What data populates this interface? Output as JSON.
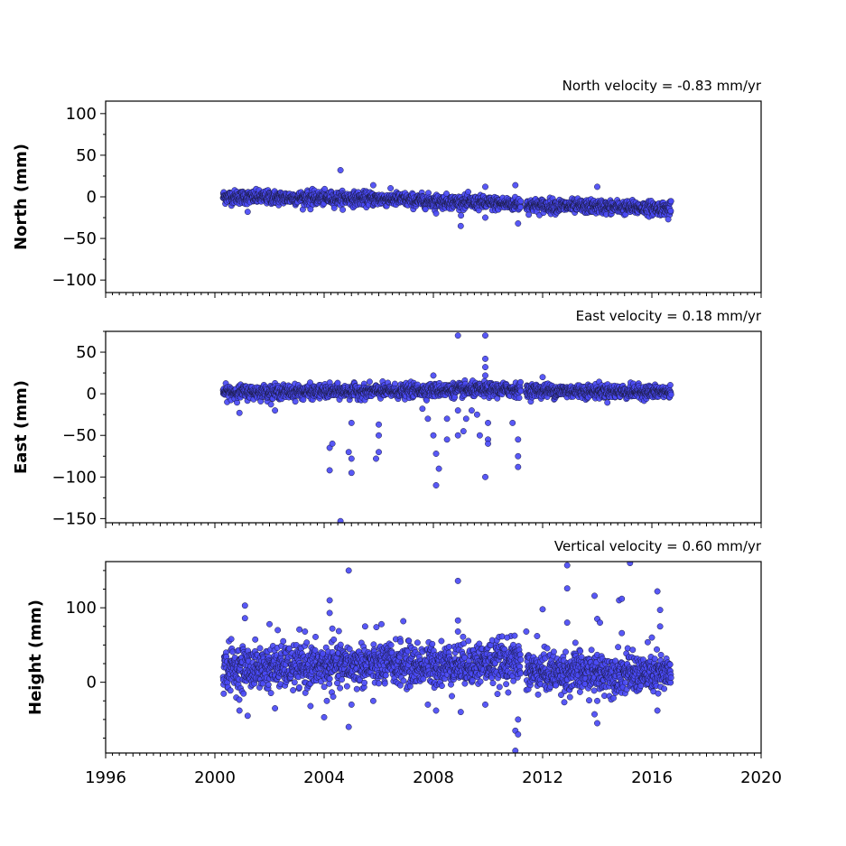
{
  "chart_data": [
    {
      "type": "scatter",
      "id": "north",
      "ylabel": "North (mm)",
      "annotation": "North velocity = -0.83 mm/yr",
      "xlim": [
        1996,
        2020
      ],
      "ylim": [
        -115,
        115
      ],
      "yticks": [
        -100,
        -50,
        0,
        50,
        100
      ],
      "yticklabels": [
        "−100",
        "−50",
        "0",
        "50",
        "100"
      ],
      "ryminor": 25,
      "color": "#4a4af5",
      "segments": [
        {
          "start": 2000.3,
          "end": 2007.0,
          "y0": 0.0,
          "y1": -3.0,
          "spread": 4
        },
        {
          "start": 2007.0,
          "end": 2011.2,
          "y0": -4.0,
          "y1": -9.0,
          "spread": 4
        },
        {
          "start": 2011.4,
          "end": 2016.7,
          "y0": -10.0,
          "y1": -14.0,
          "spread": 4
        }
      ],
      "outliers": [
        {
          "x": 2004.6,
          "y": 32
        },
        {
          "x": 2005.8,
          "y": 14
        },
        {
          "x": 2009.9,
          "y": 12
        },
        {
          "x": 2011.0,
          "y": 14
        },
        {
          "x": 2014.0,
          "y": 12
        },
        {
          "x": 2009.0,
          "y": -35
        },
        {
          "x": 2011.1,
          "y": -32
        },
        {
          "x": 2009.9,
          "y": -25
        },
        {
          "x": 2016.6,
          "y": -27
        },
        {
          "x": 2001.2,
          "y": -18
        },
        {
          "x": 2003.5,
          "y": -15
        },
        {
          "x": 2008.1,
          "y": -20
        }
      ]
    },
    {
      "type": "scatter",
      "id": "east",
      "ylabel": "East (mm)",
      "annotation": "East velocity = 0.18 mm/yr",
      "xlim": [
        1996,
        2020
      ],
      "ylim": [
        -155,
        75
      ],
      "yticks": [
        -150,
        -100,
        -50,
        0,
        50
      ],
      "yticklabels": [
        "−150",
        "−100",
        "−50",
        "0",
        "50"
      ],
      "ryminor": 25,
      "color": "#4a4af5",
      "segments": [
        {
          "start": 2000.3,
          "end": 2007.0,
          "y0": 2.0,
          "y1": 3.0,
          "spread": 4
        },
        {
          "start": 2007.0,
          "end": 2011.2,
          "y0": 4.0,
          "y1": 5.0,
          "spread": 4
        },
        {
          "start": 2011.4,
          "end": 2016.7,
          "y0": 4.0,
          "y1": 2.0,
          "spread": 4
        }
      ],
      "outliers": [
        {
          "x": 2000.9,
          "y": -23
        },
        {
          "x": 2002.2,
          "y": -20
        },
        {
          "x": 2004.2,
          "y": -65
        },
        {
          "x": 2004.3,
          "y": -60
        },
        {
          "x": 2004.2,
          "y": -92
        },
        {
          "x": 2004.6,
          "y": -153
        },
        {
          "x": 2005.0,
          "y": -35
        },
        {
          "x": 2005.0,
          "y": -78
        },
        {
          "x": 2005.0,
          "y": -95
        },
        {
          "x": 2004.9,
          "y": -70
        },
        {
          "x": 2006.0,
          "y": -37
        },
        {
          "x": 2006.0,
          "y": -50
        },
        {
          "x": 2006.0,
          "y": -70
        },
        {
          "x": 2005.9,
          "y": -78
        },
        {
          "x": 2007.6,
          "y": -18
        },
        {
          "x": 2007.8,
          "y": -30
        },
        {
          "x": 2008.0,
          "y": -50
        },
        {
          "x": 2008.1,
          "y": -72
        },
        {
          "x": 2008.2,
          "y": -90
        },
        {
          "x": 2008.1,
          "y": -110
        },
        {
          "x": 2008.5,
          "y": -30
        },
        {
          "x": 2008.5,
          "y": -55
        },
        {
          "x": 2008.9,
          "y": -20
        },
        {
          "x": 2008.9,
          "y": -50
        },
        {
          "x": 2009.1,
          "y": -45
        },
        {
          "x": 2009.2,
          "y": -30
        },
        {
          "x": 2009.4,
          "y": -20
        },
        {
          "x": 2009.6,
          "y": -25
        },
        {
          "x": 2009.7,
          "y": -50
        },
        {
          "x": 2010.0,
          "y": -35
        },
        {
          "x": 2010.0,
          "y": -55
        },
        {
          "x": 2010.0,
          "y": -60
        },
        {
          "x": 2009.9,
          "y": -100
        },
        {
          "x": 2010.9,
          "y": -35
        },
        {
          "x": 2011.1,
          "y": -55
        },
        {
          "x": 2011.1,
          "y": -75
        },
        {
          "x": 2011.1,
          "y": -88
        },
        {
          "x": 2008.9,
          "y": 70
        },
        {
          "x": 2009.9,
          "y": 70
        },
        {
          "x": 2009.9,
          "y": 42
        },
        {
          "x": 2009.9,
          "y": 32
        },
        {
          "x": 2009.9,
          "y": 22
        },
        {
          "x": 2008.0,
          "y": 22
        },
        {
          "x": 2012.0,
          "y": 20
        }
      ]
    },
    {
      "type": "scatter",
      "id": "height",
      "ylabel": "Height (mm)",
      "annotation": "Vertical velocity = 0.60 mm/yr",
      "xlim": [
        1996,
        2020
      ],
      "ylim": [
        -95,
        162
      ],
      "yticks": [
        0,
        100
      ],
      "yticklabels": [
        "0",
        "100"
      ],
      "ryminor": 25,
      "color": "#4a4af5",
      "segments": [
        {
          "start": 2000.3,
          "end": 2007.0,
          "y0": 18.0,
          "y1": 25.0,
          "spread": 14
        },
        {
          "start": 2007.0,
          "end": 2011.2,
          "y0": 22.0,
          "y1": 28.0,
          "spread": 14
        },
        {
          "start": 2011.4,
          "end": 2016.7,
          "y0": 15.0,
          "y1": 10.0,
          "spread": 13
        }
      ],
      "outliers": [
        {
          "x": 2001.1,
          "y": 103
        },
        {
          "x": 2001.1,
          "y": 86
        },
        {
          "x": 2001.2,
          "y": -45
        },
        {
          "x": 2000.9,
          "y": -38
        },
        {
          "x": 2002.0,
          "y": 78
        },
        {
          "x": 2002.3,
          "y": 70
        },
        {
          "x": 2002.2,
          "y": -35
        },
        {
          "x": 2003.3,
          "y": 68
        },
        {
          "x": 2003.5,
          "y": -32
        },
        {
          "x": 2004.0,
          "y": -47
        },
        {
          "x": 2004.2,
          "y": 110
        },
        {
          "x": 2004.2,
          "y": 93
        },
        {
          "x": 2004.3,
          "y": 72
        },
        {
          "x": 2004.1,
          "y": -25
        },
        {
          "x": 2004.9,
          "y": 150
        },
        {
          "x": 2004.9,
          "y": -60
        },
        {
          "x": 2005.0,
          "y": -30
        },
        {
          "x": 2005.5,
          "y": 75
        },
        {
          "x": 2005.8,
          "y": -25
        },
        {
          "x": 2006.1,
          "y": 78
        },
        {
          "x": 2006.9,
          "y": 82
        },
        {
          "x": 2008.1,
          "y": -38
        },
        {
          "x": 2007.8,
          "y": -30
        },
        {
          "x": 2008.9,
          "y": 136
        },
        {
          "x": 2008.9,
          "y": 83
        },
        {
          "x": 2008.9,
          "y": 68
        },
        {
          "x": 2009.0,
          "y": -40
        },
        {
          "x": 2009.9,
          "y": -30
        },
        {
          "x": 2011.0,
          "y": -65
        },
        {
          "x": 2011.1,
          "y": -70
        },
        {
          "x": 2011.0,
          "y": -92
        },
        {
          "x": 2011.1,
          "y": -50
        },
        {
          "x": 2011.4,
          "y": 68
        },
        {
          "x": 2011.8,
          "y": 62
        },
        {
          "x": 2012.0,
          "y": 98
        },
        {
          "x": 2012.9,
          "y": 157
        },
        {
          "x": 2012.9,
          "y": 126
        },
        {
          "x": 2012.9,
          "y": 80
        },
        {
          "x": 2013.2,
          "y": 53
        },
        {
          "x": 2013.9,
          "y": 116
        },
        {
          "x": 2014.0,
          "y": 85
        },
        {
          "x": 2014.1,
          "y": 80
        },
        {
          "x": 2013.9,
          "y": -43
        },
        {
          "x": 2014.0,
          "y": -55
        },
        {
          "x": 2014.0,
          "y": -25
        },
        {
          "x": 2014.8,
          "y": 110
        },
        {
          "x": 2014.9,
          "y": 112
        },
        {
          "x": 2014.9,
          "y": 66
        },
        {
          "x": 2015.2,
          "y": 160
        },
        {
          "x": 2016.0,
          "y": 60
        },
        {
          "x": 2016.2,
          "y": 122
        },
        {
          "x": 2016.3,
          "y": 97
        },
        {
          "x": 2016.3,
          "y": 75
        },
        {
          "x": 2016.2,
          "y": -38
        },
        {
          "x": 2013.0,
          "y": -20
        },
        {
          "x": 2010.7,
          "y": 60
        },
        {
          "x": 2000.6,
          "y": 58
        }
      ]
    }
  ],
  "xaxis": {
    "ticks": [
      1996,
      2000,
      2004,
      2008,
      2012,
      2016,
      2020
    ],
    "ticklabels": [
      "1996",
      "2000",
      "2004",
      "2008",
      "2012",
      "2016",
      "2020"
    ],
    "minor_per_year": 4
  }
}
